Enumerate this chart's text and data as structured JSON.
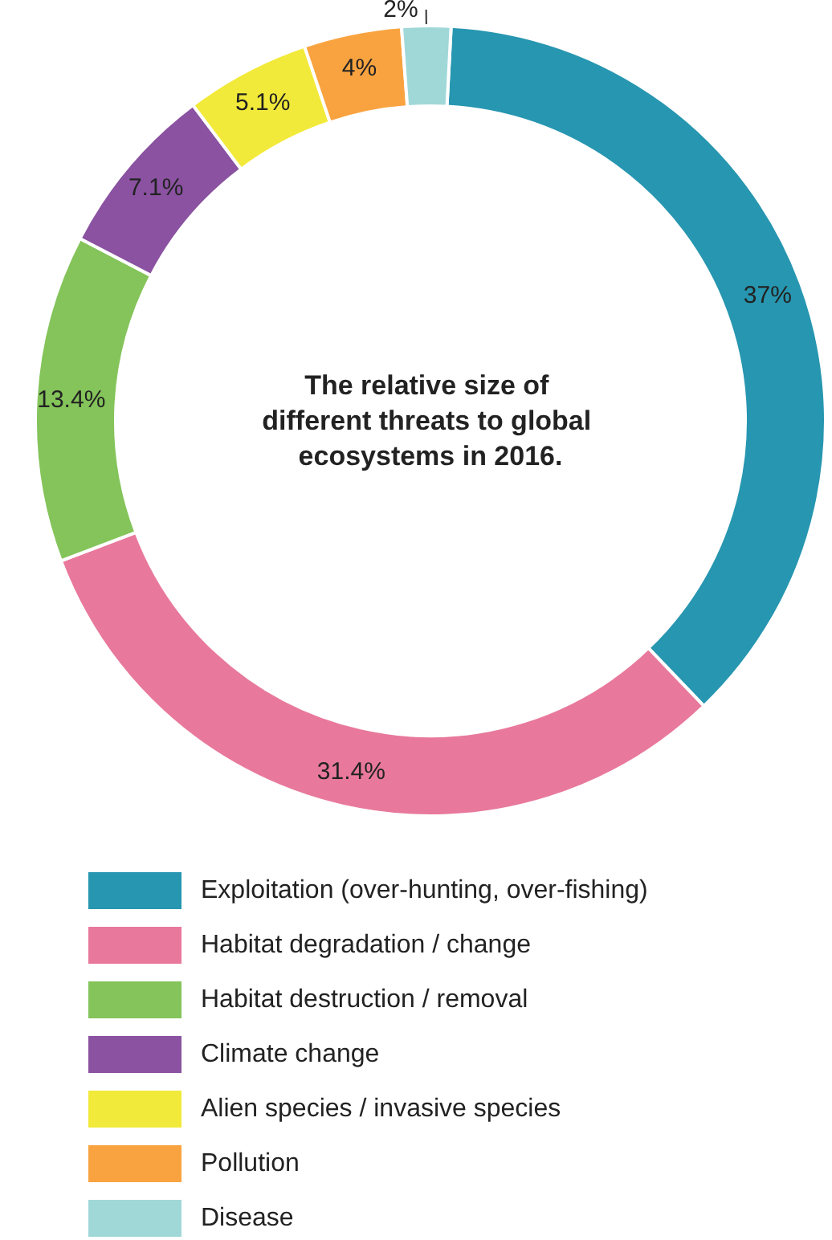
{
  "chart_data": {
    "type": "donut",
    "title": "The relative size of different threats to global ecosystems in 2016.",
    "categories": [
      "Exploitation (over-hunting, over-fishing)",
      "Habitat degradation / change",
      "Habitat destruction / removal",
      "Climate change",
      "Alien species / invasive species",
      "Pollution",
      "Disease"
    ],
    "values": [
      37,
      31.4,
      13.4,
      7.1,
      5.1,
      4,
      2
    ],
    "value_labels": [
      "37%",
      "31.4%",
      "13.4%",
      "7.1%",
      "5.1%",
      "4%",
      "2%"
    ],
    "colors": [
      "#2796b0",
      "#e8799c",
      "#84c45a",
      "#8a52a0",
      "#f2ea3a",
      "#f9a340",
      "#a0d8d8"
    ],
    "legend": "bottom"
  }
}
